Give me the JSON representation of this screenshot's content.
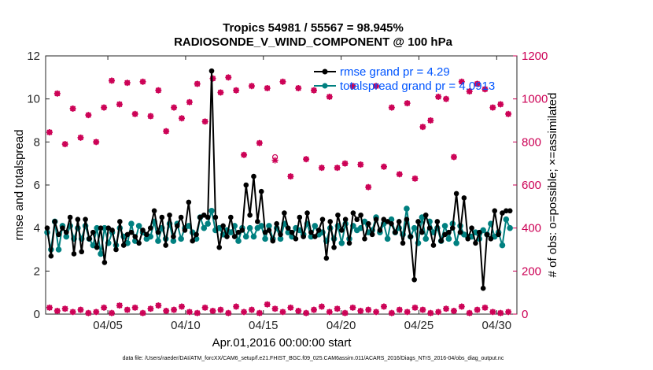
{
  "title_line1": "Tropics 54981 / 55567 = 98.945%",
  "title_line2": "RADIOSONDE_V_WIND_COMPONENT @ 100 hPa",
  "footer": "data file: /Users/raeder/DAI/ATM_forcXX/CAM6_setup/f.e21.FHIST_BGC.f09_025.CAM6assim.011/ACARS_2016/Diags_NTrS_2016-04/obs_diag_output.nc",
  "colors": {
    "rmse": "#000000",
    "spread": "#008080",
    "obs": "#cc0055",
    "legend_text": "#0055ff"
  },
  "chart_data": {
    "type": "line",
    "title": "Tropics 54981 / 55567 = 98.945%",
    "subtitle": "RADIOSONDE_V_WIND_COMPONENT @ 100 hPa",
    "xlabel": "Apr.01,2016 00:00:00 start",
    "ylabel": "rmse and totalspread",
    "y2label": "# of obs: o=possible; ×=assimilated",
    "xlim": [
      0.0,
      30.3
    ],
    "ylim": [
      0,
      12
    ],
    "y2lim": [
      0,
      1200
    ],
    "xticks": [
      {
        "value": 4,
        "label": "04/05"
      },
      {
        "value": 9,
        "label": "04/10"
      },
      {
        "value": 14,
        "label": "04/15"
      },
      {
        "value": 19,
        "label": "04/20"
      },
      {
        "value": 24,
        "label": "04/25"
      },
      {
        "value": 29,
        "label": "04/30"
      }
    ],
    "yticks": [
      "0",
      "2",
      "4",
      "6",
      "8",
      "10",
      "12"
    ],
    "y2ticks": [
      "0",
      "200",
      "400",
      "600",
      "800",
      "1000",
      "1200"
    ],
    "legend": [
      {
        "name": "rmse grand pr = 4.29",
        "color": "#000000"
      },
      {
        "name": "totalspread grand pr = 4.0913",
        "color": "#008080"
      }
    ],
    "legend_position": "top-right",
    "rmse": [
      4.0,
      2.7,
      4.3,
      3.7,
      4.0,
      3.8,
      4.5,
      2.8,
      4.4,
      2.9,
      4.4,
      3.5,
      3.8,
      3.1,
      4.0,
      2.4,
      4.0,
      3.9,
      3.0,
      4.3,
      3.2,
      3.7,
      3.8,
      3.6,
      3.3,
      3.9,
      3.7,
      4.0,
      4.8,
      3.8,
      4.5,
      3.2,
      4.6,
      3.6,
      4.1,
      4.5,
      3.9,
      5.2,
      3.4,
      3.7,
      4.5,
      4.6,
      4.5,
      11.3,
      4.5,
      3.1,
      4.1,
      3.6,
      4.5,
      3.6,
      3.8,
      3.9,
      6.0,
      4.6,
      6.4,
      4.3,
      5.7,
      3.8,
      3.9,
      3.4,
      4.2,
      3.7,
      4.7,
      4.0,
      3.8,
      3.5,
      4.5,
      3.6,
      4.7,
      3.8,
      3.6,
      3.9,
      4.4,
      2.6,
      4.3,
      3.1,
      4.6,
      3.9,
      4.4,
      3.3,
      4.7,
      4.4,
      4.6,
      3.5,
      4.2,
      3.7,
      4.4,
      3.9,
      4.4,
      4.3,
      4.2,
      3.8,
      4.3,
      3.3,
      4.4,
      3.6,
      1.6,
      4.3,
      3.8,
      4.6,
      4.0,
      3.2,
      4.3,
      3.4,
      3.7,
      3.8,
      4.0,
      5.6,
      3.8,
      5.4,
      3.5,
      4.0,
      3.3,
      3.8,
      1.2,
      3.7,
      3.5,
      4.8,
      3.7,
      4.7,
      4.8,
      4.8
    ],
    "totalspread": [
      3.8,
      3.0,
      4.3,
      3.0,
      4.1,
      3.6,
      4.1,
      3.5,
      4.0,
      3.5,
      4.1,
      3.5,
      3.2,
      4.0,
      2.8,
      4.0,
      3.3,
      3.8,
      3.2,
      4.0,
      3.6,
      3.3,
      4.2,
      3.4,
      4.1,
      3.8,
      3.5,
      3.6,
      4.3,
      3.4,
      4.0,
      3.5,
      4.2,
      3.4,
      4.2,
      3.5,
      4.0,
      4.1,
      3.8,
      3.5,
      4.5,
      4.0,
      4.2,
      4.8,
      3.9,
      4.0,
      3.7,
      3.9,
      3.8,
      4.1,
      3.4,
      4.0,
      3.6,
      4.0,
      3.6,
      4.0,
      4.1,
      3.5,
      4.1,
      3.5,
      4.0,
      3.5,
      4.2,
      3.8,
      3.6,
      4.0,
      3.9,
      3.7,
      4.2,
      3.6,
      4.1,
      3.7,
      3.8,
      3.4,
      4.0,
      3.5,
      4.1,
      3.3,
      4.2,
      3.5,
      4.1,
      3.9,
      4.0,
      4.3,
      3.8,
      3.9,
      4.5,
      3.8,
      4.2,
      3.5,
      4.4,
      3.8,
      4.0,
      3.7,
      4.9,
      3.6,
      4.0,
      3.3,
      4.5,
      3.5,
      4.3,
      3.8,
      4.0,
      3.4,
      4.1,
      3.5,
      4.2,
      3.3,
      4.1,
      3.7,
      3.6,
      3.6,
      3.8,
      3.5,
      3.9,
      3.7,
      4.2,
      3.6,
      3.8,
      3.2,
      4.4,
      4.0
    ],
    "obs_possible": [
      845,
      1025,
      790,
      955,
      820,
      925,
      800,
      960,
      1085,
      975,
      1075,
      930,
      1080,
      920,
      1040,
      850,
      960,
      910,
      985,
      1070,
      895,
      1095,
      1030,
      1100,
      1040,
      740,
      1060,
      795,
      1050,
      730,
      1080,
      640,
      1050,
      720,
      1040,
      680,
      1010,
      680,
      700,
      1060,
      695,
      590,
      1060,
      685,
      960,
      650,
      980,
      630,
      870,
      900,
      1010,
      1000,
      730,
      1080,
      1035,
      1070,
      1045,
      960,
      975,
      930
    ],
    "obs_assimilated": [
      845,
      1025,
      790,
      955,
      820,
      925,
      800,
      960,
      1085,
      975,
      1075,
      930,
      1080,
      920,
      1040,
      850,
      960,
      910,
      985,
      1070,
      895,
      1095,
      1030,
      1100,
      1040,
      740,
      1060,
      795,
      1050,
      715,
      1080,
      640,
      1050,
      720,
      1040,
      680,
      1010,
      680,
      700,
      1060,
      695,
      590,
      1060,
      685,
      960,
      650,
      980,
      630,
      870,
      900,
      1010,
      1000,
      730,
      1080,
      1035,
      1070,
      1045,
      960,
      975,
      930
    ],
    "obs_low_possible": [
      30,
      15,
      25,
      10,
      20,
      5,
      10,
      30,
      5,
      40,
      20,
      30,
      5,
      25,
      40,
      15,
      20,
      35,
      10,
      5,
      30,
      15,
      20,
      5,
      35,
      10,
      20,
      5,
      45,
      25,
      10,
      30,
      15,
      5,
      20,
      35,
      10,
      25,
      5,
      30,
      15,
      20,
      10,
      35,
      5,
      20,
      10,
      30,
      20,
      5,
      10,
      25,
      15,
      35,
      5,
      20,
      30,
      10,
      5,
      10
    ],
    "obs_low_assimilated": [
      30,
      15,
      25,
      10,
      20,
      5,
      10,
      30,
      5,
      40,
      20,
      30,
      5,
      25,
      40,
      15,
      20,
      35,
      10,
      5,
      30,
      15,
      20,
      5,
      35,
      10,
      20,
      5,
      45,
      25,
      10,
      30,
      15,
      5,
      20,
      35,
      10,
      25,
      5,
      30,
      15,
      20,
      10,
      35,
      5,
      20,
      10,
      30,
      20,
      5,
      10,
      25,
      15,
      35,
      5,
      20,
      30,
      10,
      5,
      10
    ]
  }
}
